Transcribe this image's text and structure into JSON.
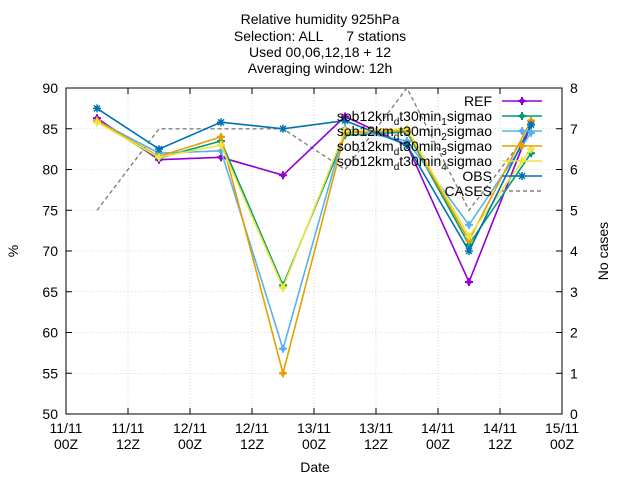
{
  "chart_data": {
    "type": "line",
    "title_lines": [
      "Relative humidity 925hPa",
      "Selection: ALL      7 stations",
      "Used 00,06,12,18 + 12",
      "Averaging window: 12h"
    ],
    "xlabel": "Date",
    "ylabel": "%",
    "y2label": "No cases",
    "ylim": [
      50,
      90
    ],
    "y2lim": [
      0,
      8
    ],
    "yticks": [
      50,
      55,
      60,
      65,
      70,
      75,
      80,
      85,
      90
    ],
    "y2ticks": [
      0,
      1,
      2,
      3,
      4,
      5,
      6,
      7,
      8
    ],
    "x_range_hours": [
      0,
      96
    ],
    "x_ticks": [
      {
        "h": 0,
        "line1": "11/11",
        "line2": "00Z"
      },
      {
        "h": 12,
        "line1": "11/11",
        "line2": "12Z"
      },
      {
        "h": 24,
        "line1": "12/11",
        "line2": "00Z"
      },
      {
        "h": 36,
        "line1": "12/11",
        "line2": "12Z"
      },
      {
        "h": 48,
        "line1": "13/11",
        "line2": "00Z"
      },
      {
        "h": 60,
        "line1": "13/11",
        "line2": "12Z"
      },
      {
        "h": 72,
        "line1": "14/11",
        "line2": "00Z"
      },
      {
        "h": 84,
        "line1": "14/11",
        "line2": "12Z"
      },
      {
        "h": 96,
        "line1": "15/11",
        "line2": "00Z"
      }
    ],
    "x": [
      6,
      18,
      30,
      42,
      54,
      66,
      78,
      90
    ],
    "grid": true,
    "legend_position": "top-right",
    "series": [
      {
        "name": "REF",
        "color": "#9400d3",
        "marker": "plus",
        "values": [
          86.3,
          81.2,
          81.5,
          79.3,
          86.5,
          83.0,
          66.2,
          85.5
        ]
      },
      {
        "name": "sob12km_dt30min_1sigmao",
        "color": "#009e73",
        "marker": "plus",
        "values": [
          85.9,
          81.4,
          83.5,
          65.8,
          84.2,
          84.6,
          70.8,
          82.0
        ]
      },
      {
        "name": "sob12km_dt30min_2sigmao",
        "color": "#56b4e9",
        "marker": "plus",
        "values": [
          86.0,
          82.0,
          82.3,
          58.0,
          85.0,
          83.5,
          73.2,
          84.5
        ]
      },
      {
        "name": "sob12km_dt30min_3sigmao",
        "color": "#e69f00",
        "marker": "plus",
        "values": [
          86.0,
          81.6,
          84.0,
          55.0,
          84.5,
          84.8,
          71.3,
          86.0
        ]
      },
      {
        "name": "sob12km_dt30min_4sigmao",
        "color": "#f0e442",
        "marker": "plus",
        "values": [
          85.8,
          81.5,
          83.0,
          65.5,
          84.8,
          85.0,
          71.8,
          82.5
        ]
      },
      {
        "name": "OBS",
        "color": "#0072b2",
        "marker": "star",
        "values": [
          87.5,
          82.5,
          85.8,
          85.0,
          86.0,
          83.0,
          70.0,
          85.5
        ]
      },
      {
        "name": "CASES",
        "color": "#808080",
        "dashed": true,
        "axis": "y2",
        "x": [
          6,
          18,
          30,
          42,
          54,
          66,
          78,
          90
        ],
        "values": [
          5,
          7,
          7,
          7,
          6,
          8,
          5,
          7
        ]
      }
    ]
  },
  "legend_labels": {
    "REF": "REF",
    "OBS": "OBS",
    "CASES": "CASES",
    "sob": "sob12km",
    "dt": "t30min",
    "sigmao": "sigmao",
    "sub_d": "d",
    "subs": [
      "1",
      "2",
      "3",
      "4"
    ]
  }
}
